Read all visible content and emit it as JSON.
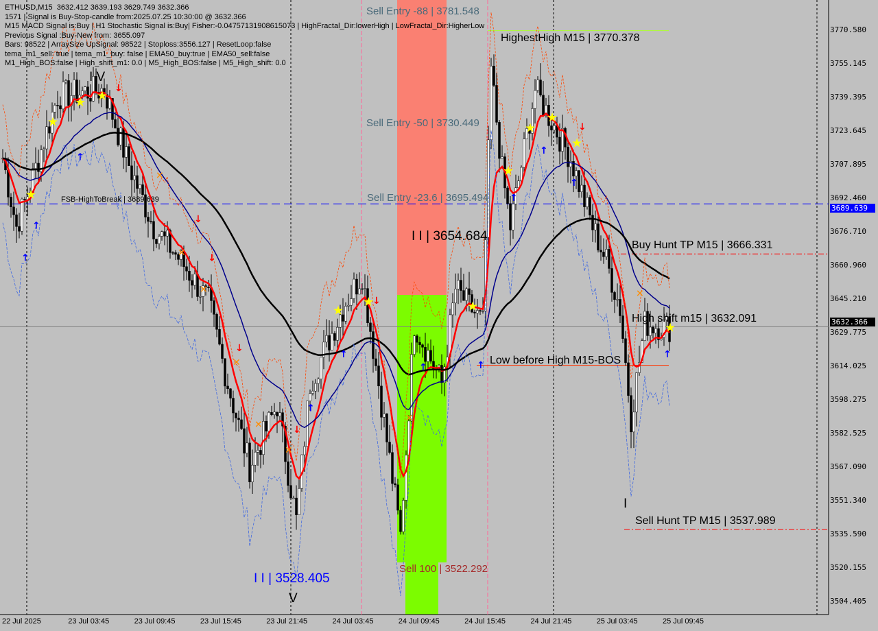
{
  "header": {
    "symbol_line": "ETHUSD,M15  3632.412 3639.193 3629.749 3632.366",
    "lines": [
      "1571 | Signal is Buy-Stop-candle from:2025.07.25 10:30:00 @ 3632.366",
      "M15 MACD Signal is:Buy | H1 Stochastic Signal is:Buy| Fisher:-0.04757131908615073 | HighFractal_Dir:lowerHigh | LowFractal_Dir:HigherLow",
      "Previous Signal :Buy-New from: 3655.097",
      "Bars: 98522 | ArraySize UpSignal: 98522 | Stoploss:3556.127 | ResetLoop:false",
      "tema_m1_sell: true | tema_m1_buy: false | EMA50_buy:true | EMA50_sell:false",
      "M1_High_BOS:false | High_shift_m1: 0.0 | M5_High_BOS:false | M5_High_shift: 0.0"
    ]
  },
  "labels": {
    "sell_88": "Sell Entry -88 | 3781.548",
    "sell_50": "Sell Entry -50 | 3730.449",
    "sell_236": "Sell Entry -23.6 | 3695.494",
    "sell_100": "Sell 100 | 3522.292",
    "highest": "HighestHigh    M15 | 3770.378",
    "fsb": "FSB-HighToBreak | 3689.639",
    "wave_iii": "I I | 3654.684",
    "wave_ii": "I I | 3528.405",
    "wave_iv": "I V",
    "wave_v": "V",
    "wave_i": "I",
    "buy_tp": "Buy Hunt TP M15 | 3666.331",
    "high_shift": "High shift m15 | 3632.091",
    "low_before": "Low before High    M15-BOS",
    "sell_tp": "Sell Hunt TP M15 | 3537.989"
  },
  "price_axis": [
    "3770.580",
    "3755.145",
    "3739.395",
    "3723.645",
    "3707.895",
    "3692.460",
    "3676.710",
    "3660.960",
    "3645.210",
    "3629.775",
    "3614.025",
    "3598.275",
    "3582.525",
    "3567.090",
    "3551.340",
    "3535.590",
    "3520.155",
    "3504.405"
  ],
  "price_tags": {
    "fsb": "3689.639",
    "current": "3632.366"
  },
  "time_axis": [
    "22 Jul 2025",
    "23 Jul 03:45",
    "23 Jul 09:45",
    "23 Jul 15:45",
    "23 Jul 21:45",
    "24 Jul 03:45",
    "24 Jul 09:45",
    "24 Jul 15:45",
    "24 Jul 21:45",
    "25 Jul 03:45",
    "25 Jul 09:45"
  ],
  "colors": {
    "bg": "#c0c0c0",
    "sell_zone": "#fa8072",
    "buy_zone": "#7cfc00",
    "fast_ma": "#ff0000",
    "mid_ma": "#00008b",
    "slow_ma": "#000000",
    "fsb": "#0000ff"
  },
  "chart_data": {
    "type": "candlestick",
    "ylim": [
      3497,
      3785
    ],
    "close_anchors": [
      [
        0,
        3711
      ],
      [
        5,
        3679
      ],
      [
        10,
        3698
      ],
      [
        20,
        3740
      ],
      [
        37,
        3743
      ],
      [
        45,
        3711
      ],
      [
        55,
        3679
      ],
      [
        65,
        3663
      ],
      [
        75,
        3644
      ],
      [
        82,
        3606
      ],
      [
        90,
        3567
      ],
      [
        100,
        3596
      ],
      [
        107,
        3542
      ],
      [
        112,
        3606
      ],
      [
        125,
        3644
      ],
      [
        131,
        3657
      ],
      [
        137,
        3606
      ],
      [
        145,
        3535
      ],
      [
        150,
        3634
      ],
      [
        160,
        3606
      ],
      [
        165,
        3650
      ],
      [
        175,
        3634
      ],
      [
        178,
        3752
      ],
      [
        182,
        3705
      ],
      [
        185,
        3679
      ],
      [
        194,
        3743
      ],
      [
        207,
        3711
      ],
      [
        215,
        3679
      ],
      [
        220,
        3663
      ],
      [
        225,
        3641
      ],
      [
        229,
        3590
      ],
      [
        234,
        3634
      ],
      [
        243,
        3632
      ]
    ],
    "levels": {
      "fsb_high_to_break": 3689.639,
      "buy_hunt_tp": 3666.331,
      "current": 3632.366,
      "low_before_high": 3614.5,
      "sell_hunt_tp": 3537.989,
      "highest_high": 3770.378
    }
  }
}
